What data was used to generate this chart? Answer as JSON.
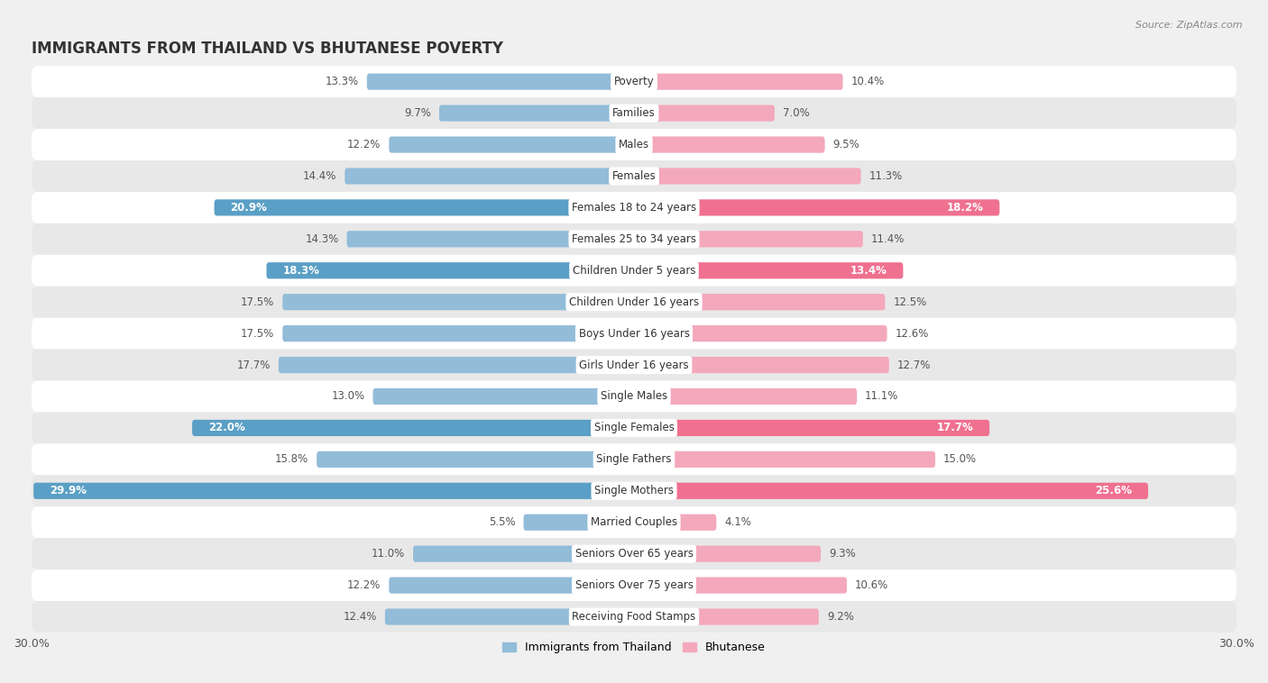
{
  "title": "IMMIGRANTS FROM THAILAND VS BHUTANESE POVERTY",
  "source": "Source: ZipAtlas.com",
  "categories": [
    "Poverty",
    "Families",
    "Males",
    "Females",
    "Females 18 to 24 years",
    "Females 25 to 34 years",
    "Children Under 5 years",
    "Children Under 16 years",
    "Boys Under 16 years",
    "Girls Under 16 years",
    "Single Males",
    "Single Females",
    "Single Fathers",
    "Single Mothers",
    "Married Couples",
    "Seniors Over 65 years",
    "Seniors Over 75 years",
    "Receiving Food Stamps"
  ],
  "thailand_values": [
    13.3,
    9.7,
    12.2,
    14.4,
    20.9,
    14.3,
    18.3,
    17.5,
    17.5,
    17.7,
    13.0,
    22.0,
    15.8,
    29.9,
    5.5,
    11.0,
    12.2,
    12.4
  ],
  "bhutanese_values": [
    10.4,
    7.0,
    9.5,
    11.3,
    18.2,
    11.4,
    13.4,
    12.5,
    12.6,
    12.7,
    11.1,
    17.7,
    15.0,
    25.6,
    4.1,
    9.3,
    10.6,
    9.2
  ],
  "thailand_color": "#92bcd8",
  "bhutanese_color": "#f4a8bc",
  "thailand_highlight_color": "#5a9fc5",
  "bhutanese_highlight_color": "#f07090",
  "highlight_rows": [
    4,
    6,
    11,
    13
  ],
  "background_color": "#f0f0f0",
  "row_bg_odd": "#ffffff",
  "row_bg_even": "#e8e8e8",
  "axis_max": 30.0,
  "bar_height": 0.52,
  "label_fontsize": 8.5,
  "cat_fontsize": 8.5,
  "title_fontsize": 12,
  "legend_labels": [
    "Immigrants from Thailand",
    "Bhutanese"
  ]
}
